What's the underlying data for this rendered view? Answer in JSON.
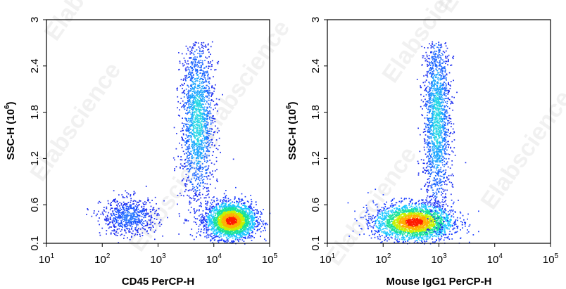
{
  "watermark": "Elabscience",
  "chart_data": [
    {
      "type": "scatter",
      "xlabel": "CD45 PerCP-H",
      "ylabel": "SSC-H",
      "ylabel_unit_base": "10",
      "ylabel_unit_exp": "6",
      "xscale": "log",
      "xlim": [
        10,
        100000
      ],
      "ylim": [
        0.1,
        3
      ],
      "xticks": [
        {
          "base": "10",
          "exp": "1",
          "v": 10
        },
        {
          "base": "10",
          "exp": "2",
          "v": 100
        },
        {
          "base": "10",
          "exp": "3",
          "v": 1000
        },
        {
          "base": "10",
          "exp": "4",
          "v": 10000
        },
        {
          "base": "10",
          "exp": "5",
          "v": 100000
        }
      ],
      "yticks": [
        {
          "label": "0.1",
          "v": 0.1
        },
        {
          "label": "0.6",
          "v": 0.6
        },
        {
          "label": "1.2",
          "v": 1.2
        },
        {
          "label": "1.8",
          "v": 1.8
        },
        {
          "label": "2.4",
          "v": 2.4
        },
        {
          "label": "3",
          "v": 3
        }
      ],
      "grid": false,
      "populations": [
        {
          "center_x": 20000,
          "center_y": 0.4,
          "spread_logx": 0.22,
          "spread_y": 0.12,
          "density": "high",
          "color": "#ff1a00"
        },
        {
          "center_x": 5000,
          "center_y": 1.7,
          "spread_logx": 0.15,
          "spread_y": 0.55,
          "density": "medium",
          "color": "#1ec8ff"
        },
        {
          "center_x": 300,
          "center_y": 0.45,
          "spread_logx": 0.25,
          "spread_y": 0.12,
          "density": "low",
          "color": "#2f7bff"
        }
      ]
    },
    {
      "type": "scatter",
      "xlabel": "Mouse IgG1 PerCP-H",
      "ylabel": "SSC-H",
      "ylabel_unit_base": "10",
      "ylabel_unit_exp": "6",
      "xscale": "log",
      "xlim": [
        10,
        100000
      ],
      "ylim": [
        0.1,
        3
      ],
      "xticks": [
        {
          "base": "10",
          "exp": "1",
          "v": 10
        },
        {
          "base": "10",
          "exp": "2",
          "v": 100
        },
        {
          "base": "10",
          "exp": "3",
          "v": 1000
        },
        {
          "base": "10",
          "exp": "4",
          "v": 10000
        },
        {
          "base": "10",
          "exp": "5",
          "v": 100000
        }
      ],
      "yticks": [
        {
          "label": "0.1",
          "v": 0.1
        },
        {
          "label": "0.6",
          "v": 0.6
        },
        {
          "label": "1.2",
          "v": 1.2
        },
        {
          "label": "1.8",
          "v": 1.8
        },
        {
          "label": "2.4",
          "v": 2.4
        },
        {
          "label": "3",
          "v": 3
        }
      ],
      "grid": false,
      "populations": [
        {
          "center_x": 350,
          "center_y": 0.38,
          "spread_logx": 0.35,
          "spread_y": 0.12,
          "density": "high",
          "color": "#ff1a00"
        },
        {
          "center_x": 900,
          "center_y": 1.7,
          "spread_logx": 0.12,
          "spread_y": 0.6,
          "density": "medium",
          "color": "#1ec8ff"
        }
      ]
    }
  ]
}
